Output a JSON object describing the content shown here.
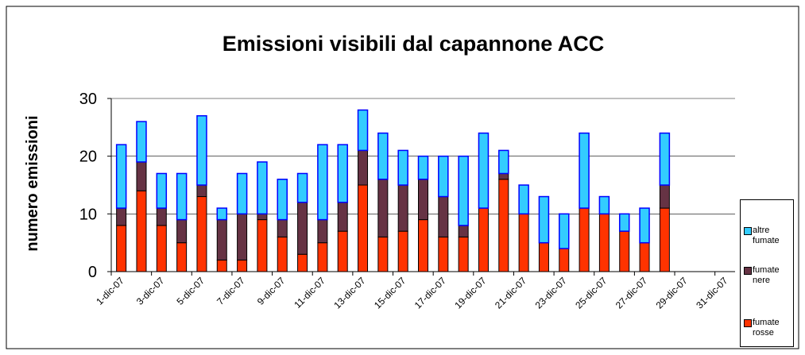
{
  "chart_data": {
    "type": "stacked-bar",
    "title": "Emissioni visibili dal capannone ACC",
    "y_label": "numero emissioni",
    "categories": [
      "1-dic-07",
      null,
      "3-dic-07",
      null,
      "5-dic-07",
      null,
      "7-dic-07",
      null,
      "9-dic-07",
      null,
      "11-dic-07",
      null,
      "13-dic-07",
      null,
      "15-dic-07",
      null,
      "17-dic-07",
      null,
      "19-dic-07",
      null,
      "21-dic-07",
      null,
      "23-dic-07",
      null,
      "25-dic-07",
      null,
      "27-dic-07",
      null,
      "29-dic-07",
      null,
      "31-dic-07"
    ],
    "series": [
      {
        "name": "fumate rosse",
        "color": "#ff3300",
        "values": [
          8,
          14,
          8,
          5,
          13,
          2,
          2,
          9,
          6,
          3,
          5,
          7,
          15,
          6,
          7,
          9,
          6,
          6,
          11,
          16,
          10,
          5,
          4,
          11,
          10,
          7,
          5,
          11,
          null,
          null,
          null
        ]
      },
      {
        "name": "fumate nere",
        "color": "#663344",
        "values": [
          3,
          5,
          3,
          4,
          2,
          7,
          8,
          1,
          3,
          9,
          4,
          5,
          6,
          10,
          8,
          7,
          7,
          2,
          0,
          1,
          0,
          0,
          0,
          0,
          0,
          0,
          0,
          4,
          null,
          null,
          null
        ]
      },
      {
        "name": "altre fumate",
        "color": "#33ccff",
        "values": [
          11,
          7,
          6,
          8,
          12,
          2,
          7,
          9,
          7,
          5,
          13,
          10,
          7,
          8,
          6,
          4,
          7,
          12,
          13,
          4,
          5,
          8,
          6,
          13,
          3,
          3,
          6,
          9,
          null,
          null,
          null
        ]
      }
    ],
    "ylim": [
      0,
      30
    ],
    "yticks": [
      0,
      10,
      20,
      30
    ],
    "grid": true,
    "legend": "right"
  }
}
